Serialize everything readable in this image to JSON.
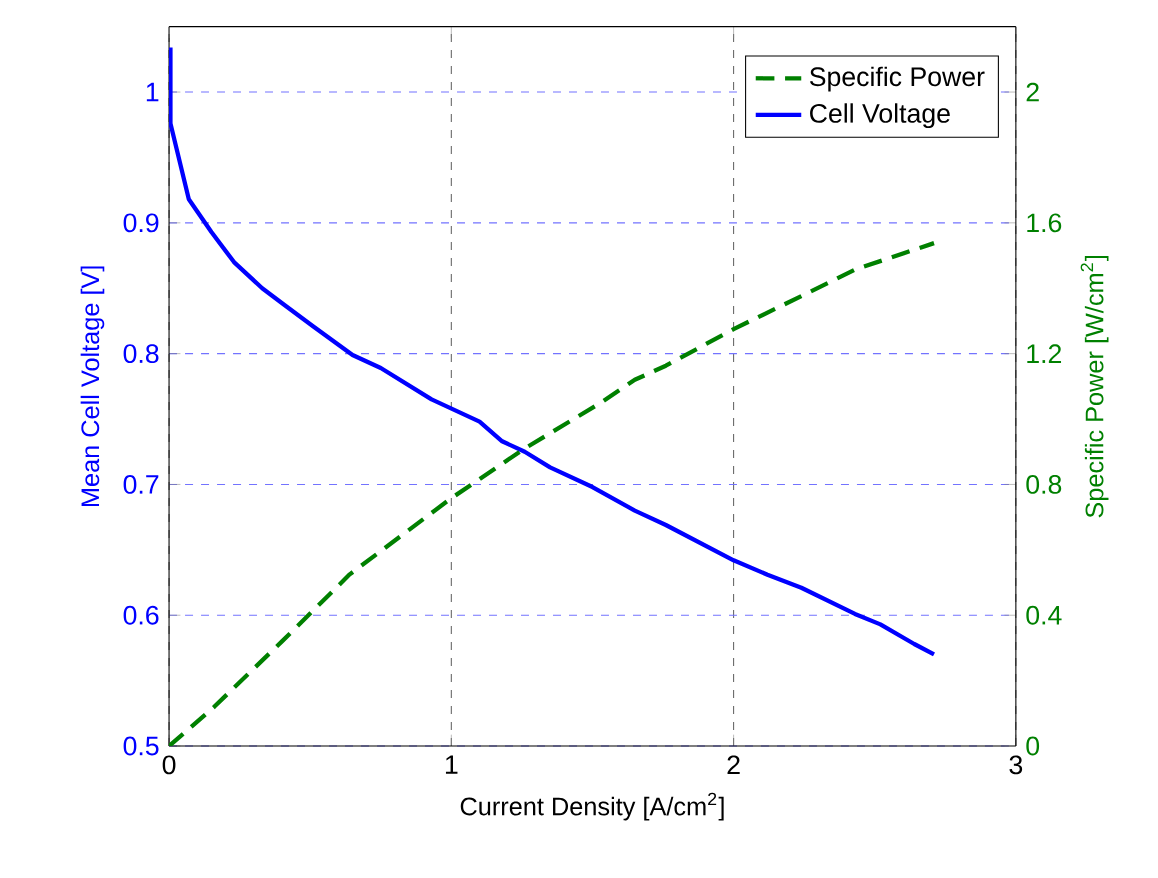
{
  "chart_data": {
    "type": "line",
    "xlabel": "Current Density [A/cm$^{2}$]",
    "ylabel": "Mean Cell Voltage [V]",
    "y2label": "Specific Power [W/cm$^{2}$]",
    "xlim": [
      0,
      3
    ],
    "xticks": [
      0,
      1,
      2,
      3
    ],
    "ylim": [
      0.5,
      1.05
    ],
    "yticks": [
      0.5,
      0.6,
      0.7,
      0.8,
      0.9,
      1
    ],
    "y2lim": [
      0,
      2.2
    ],
    "y2ticks": [
      0,
      0.4,
      0.8,
      1.2,
      1.6,
      2
    ],
    "grid": true,
    "legend": "top right",
    "marker": "none",
    "series": [
      {
        "name": "Specific Power",
        "color": "#008000",
        "axis": "y2",
        "line_style": "dashed",
        "x": [
          0,
          0.16,
          0.4,
          0.64,
          1.0,
          1.26,
          1.53,
          1.65,
          1.76,
          2.0,
          2.24,
          2.43,
          2.71
        ],
        "values": [
          0,
          0.12,
          0.32,
          0.525,
          0.758,
          0.91,
          1.05,
          1.12,
          1.163,
          1.275,
          1.376,
          1.457,
          1.538
        ]
      },
      {
        "name": "Cell Voltage",
        "color": "#0000ff",
        "axis": "y",
        "line_style": "solid",
        "x": [
          0.005,
          0.005,
          0.07,
          0.15,
          0.23,
          0.33,
          0.41,
          0.51,
          0.65,
          0.75,
          0.93,
          1.1,
          1.18,
          1.26,
          1.35,
          1.5,
          1.65,
          1.76,
          2.0,
          2.12,
          2.24,
          2.43,
          2.52,
          2.64,
          2.71
        ],
        "values": [
          1.034,
          0.976,
          0.918,
          0.893,
          0.87,
          0.85,
          0.837,
          0.821,
          0.799,
          0.789,
          0.765,
          0.748,
          0.733,
          0.725,
          0.713,
          0.698,
          0.68,
          0.669,
          0.642,
          0.631,
          0.621,
          0.601,
          0.593,
          0.578,
          0.57
        ]
      }
    ]
  }
}
